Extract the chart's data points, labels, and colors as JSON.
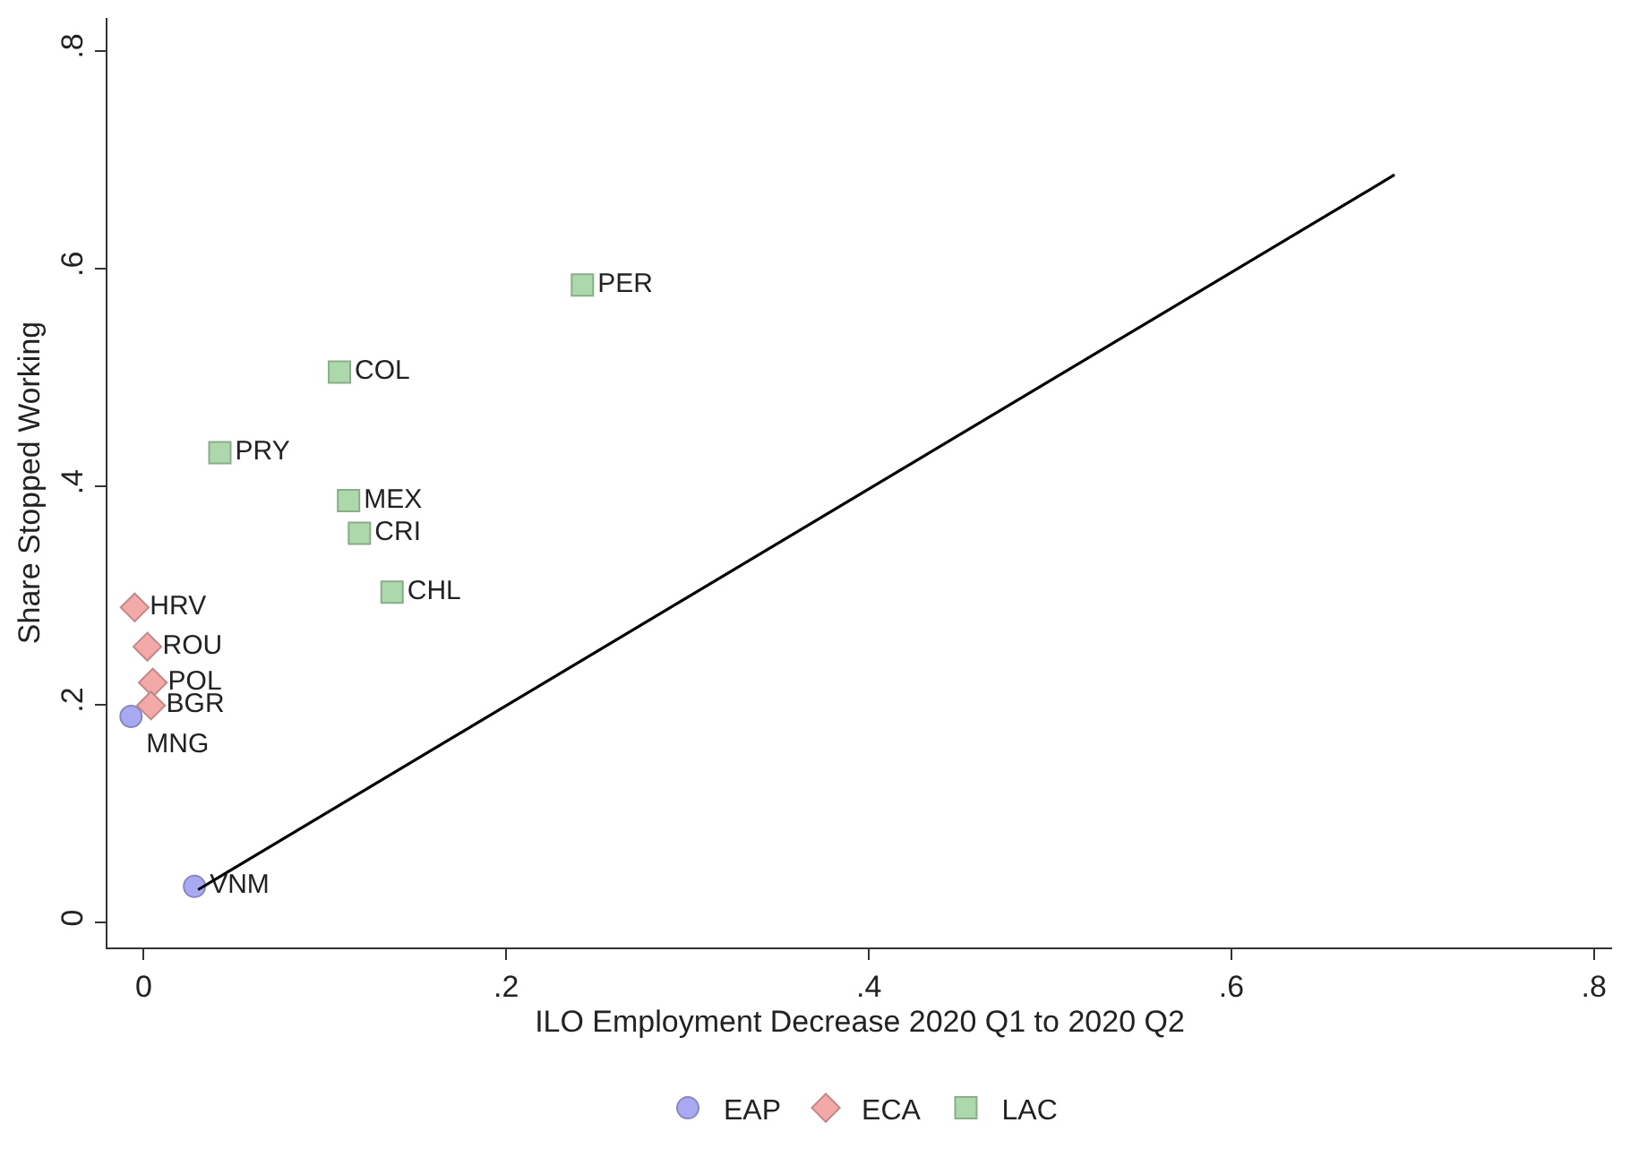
{
  "chart_data": {
    "type": "scatter",
    "xlabel": "ILO Employment Decrease 2020 Q1 to 2020 Q2",
    "ylabel": "Share Stopped Working",
    "xlim": [
      -0.02,
      0.81
    ],
    "ylim": [
      -0.023,
      0.83
    ],
    "xticks": [
      {
        "value": 0,
        "label": "0"
      },
      {
        "value": 0.2,
        "label": ".2"
      },
      {
        "value": 0.4,
        "label": ".4"
      },
      {
        "value": 0.6,
        "label": ".6"
      },
      {
        "value": 0.8,
        "label": ".8"
      }
    ],
    "yticks": [
      {
        "value": 0,
        "label": "0"
      },
      {
        "value": 0.2,
        "label": ".2"
      },
      {
        "value": 0.4,
        "label": ".4"
      },
      {
        "value": 0.6,
        "label": ".6"
      },
      {
        "value": 0.8,
        "label": ".8"
      }
    ],
    "grid": false,
    "legend": "bottom",
    "series": [
      {
        "name": "EAP",
        "color": "#a9a9f2",
        "marker": "circle",
        "x": [
          -0.007,
          0.028
        ],
        "values": [
          0.189,
          0.033
        ],
        "value_labels": [
          "MNG",
          "VNM"
        ]
      },
      {
        "name": "ECA",
        "color": "#f4a9a9",
        "marker": "diamond",
        "x": [
          -0.005,
          0.002,
          0.005,
          0.004
        ],
        "values": [
          0.289,
          0.253,
          0.22,
          0.199
        ],
        "value_labels": [
          "HRV",
          "ROU",
          "POL",
          "BGR"
        ]
      },
      {
        "name": "LAC",
        "color": "#acd8ac",
        "marker": "square",
        "x": [
          0.242,
          0.108,
          0.042,
          0.113,
          0.119,
          0.137
        ],
        "values": [
          0.585,
          0.505,
          0.431,
          0.387,
          0.357,
          0.303
        ],
        "value_labels": [
          "PER",
          "COL",
          "PRY",
          "MEX",
          "CRI",
          "CHL"
        ]
      },
      {
        "type": "line",
        "color": "#000000",
        "marker": "none",
        "x": [
          0.03,
          0.69
        ],
        "values": [
          0.03,
          0.686
        ]
      }
    ]
  }
}
